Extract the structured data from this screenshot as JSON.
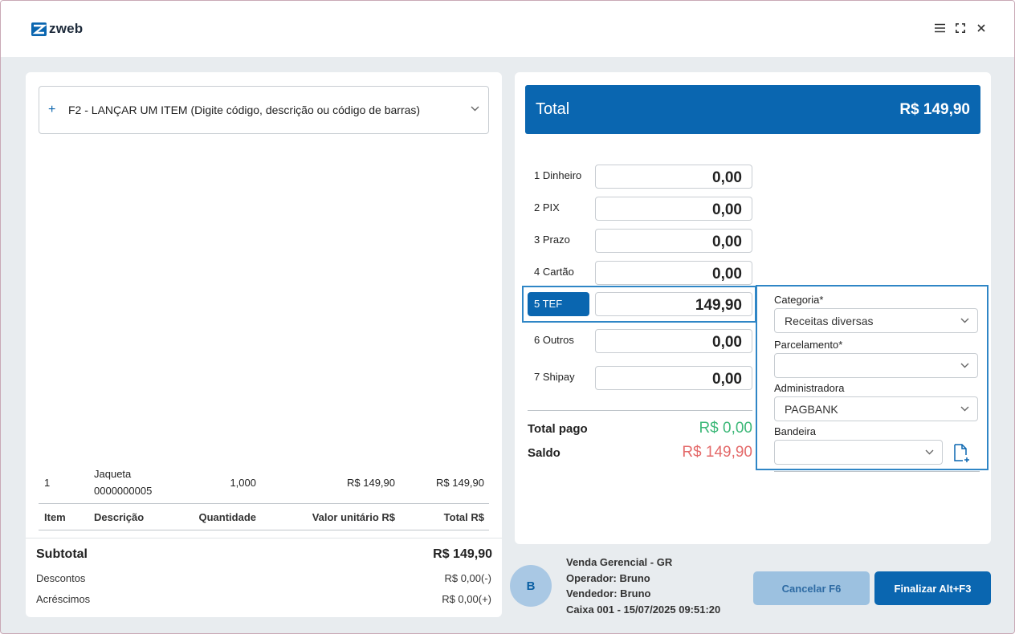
{
  "app": {
    "logo_text": "zweb"
  },
  "colors": {
    "brand": "#0a66b0",
    "paid": "#3cb878",
    "balance": "#e46a6a"
  },
  "item_search": {
    "placeholder": "F2 - LANÇAR UM ITEM (Digite código, descrição ou código de barras)"
  },
  "items": [
    {
      "item": "1",
      "description": "Jaqueta",
      "code": "0000000005",
      "quantity": "1,000",
      "unit_value": "R$ 149,90",
      "total": "R$ 149,90"
    }
  ],
  "table": {
    "headers": [
      "Item",
      "Descrição",
      "Quantidade",
      "Valor unitário R$",
      "Total R$"
    ]
  },
  "totals": {
    "subtotal_label": "Subtotal",
    "subtotal_value": "R$ 149,90",
    "discounts_label": "Descontos",
    "discounts_value": "R$ 0,00(-)",
    "additions_label": "Acréscimos",
    "additions_value": "R$ 0,00(+)"
  },
  "total_bar": {
    "label": "Total",
    "value": "R$ 149,90"
  },
  "payments": [
    {
      "label": "1 Dinheiro",
      "value": "0,00"
    },
    {
      "label": "2 PIX",
      "value": "0,00"
    },
    {
      "label": "3 Prazo",
      "value": "0,00"
    },
    {
      "label": "4 Cartão",
      "value": "0,00"
    },
    {
      "label": "5 TEF",
      "value": "149,90"
    },
    {
      "label": "6 Outros",
      "value": "0,00"
    },
    {
      "label": "7 Shipay",
      "value": "0,00"
    }
  ],
  "summary": {
    "paid_label": "Total pago",
    "paid_value": "R$ 0,00",
    "balance_label": "Saldo",
    "balance_value": "R$ 149,90"
  },
  "tef_form": {
    "category_label": "Categoria*",
    "category_value": "Receitas diversas",
    "installments_label": "Parcelamento*",
    "installments_value": "",
    "admin_label": "Administradora",
    "admin_value": "PAGBANK",
    "brand_label": "Bandeira",
    "brand_value": ""
  },
  "footer": {
    "avatar_initial": "B",
    "sale_type": "Venda Gerencial - GR",
    "operator": "Operador: Bruno",
    "seller": "Vendedor: Bruno",
    "register": "Caixa 001 - 15/07/2025 09:51:20",
    "cancel_label": "Cancelar F6",
    "finish_label": "Finalizar Alt+F3"
  }
}
